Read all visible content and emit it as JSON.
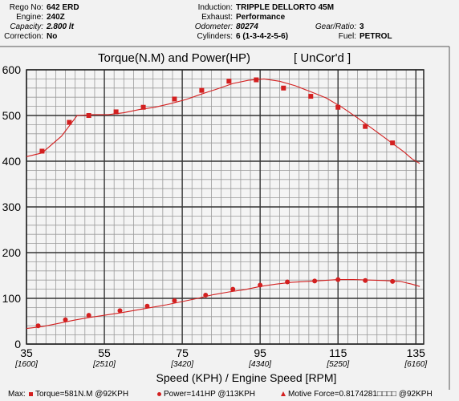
{
  "header": {
    "left": [
      {
        "label": "Rego No:",
        "value": "642 ERD",
        "italic": false
      },
      {
        "label": "Engine:",
        "value": "240Z",
        "italic": false
      },
      {
        "label": "Capacity:",
        "value": "2.800 lt",
        "italic": true
      },
      {
        "label": "Correction:",
        "value": "No",
        "italic": false
      }
    ],
    "mid": [
      {
        "label": "Induction:",
        "value": "TRIPPLE DELLORTO 45M",
        "italic": false
      },
      {
        "label": "Exhaust:",
        "value": "Performance",
        "italic": false
      },
      {
        "label": "Odometer:",
        "value": "80274",
        "italic": true
      },
      {
        "label": "Cylinders:",
        "value": "6 (1-3-4-2-5-6)",
        "italic": false
      }
    ],
    "right": [
      {
        "label": "Gear/Ratio:",
        "value": "3",
        "italic": true
      },
      {
        "label": "Fuel:",
        "value": "PETROL",
        "italic": false
      }
    ]
  },
  "footer": {
    "max_label": "Max:",
    "torque": "Torque=581N.M @92KPH",
    "power": "Power=141HP @113KPH",
    "motive": "Motive Force=0.8174281□□□□ @92KPH"
  },
  "chart_data": {
    "type": "line",
    "title": "Torque(N.M) and Power(HP)",
    "title_suffix": "[ UnCor'd ]",
    "xlabel": "Speed (KPH) / Engine Speed [RPM]",
    "xlim": [
      35,
      137
    ],
    "ylim": [
      0,
      600
    ],
    "x_ticks": [
      35,
      55,
      75,
      95,
      115,
      135
    ],
    "x_tick_labels": [
      "35",
      "55",
      "75",
      "95",
      "115",
      "135"
    ],
    "rpm_ticks": [
      35,
      55,
      75,
      95,
      115,
      135
    ],
    "rpm_tick_labels": [
      "[1600]",
      "[2510]",
      "[3420]",
      "[4340]",
      "[5250]",
      "[6160]"
    ],
    "y_ticks": [
      0,
      100,
      200,
      300,
      400,
      500,
      600
    ],
    "y_tick_labels": [
      "0",
      "100",
      "200",
      "300",
      "400",
      "500",
      "600"
    ],
    "grid": true,
    "colors": {
      "series": "#d32020",
      "grid": "#333333",
      "minor_grid": "#9a9a9a"
    },
    "series": [
      {
        "name": "Torque",
        "marker": "square",
        "x": [
          35,
          39,
          44,
          48,
          52,
          56,
          60,
          64,
          68,
          72,
          76,
          80,
          84,
          88,
          92,
          96,
          100,
          104,
          108,
          112,
          116,
          120,
          124,
          128,
          132,
          134,
          136
        ],
        "y": [
          410,
          418,
          455,
          500,
          502,
          502,
          506,
          513,
          518,
          526,
          535,
          547,
          558,
          570,
          577,
          580,
          575,
          565,
          552,
          538,
          518,
          495,
          470,
          445,
          420,
          405,
          395
        ]
      },
      {
        "name": "Power",
        "marker": "circle",
        "x": [
          35,
          39,
          43,
          47,
          51,
          55,
          59,
          63,
          67,
          71,
          75,
          79,
          83,
          87,
          91,
          95,
          99,
          103,
          107,
          111,
          115,
          119,
          123,
          127,
          131,
          134,
          136
        ],
        "y": [
          34,
          38,
          45,
          52,
          58,
          63,
          68,
          74,
          80,
          86,
          93,
          100,
          108,
          114,
          119,
          126,
          131,
          135,
          137,
          139,
          141,
          141,
          140,
          139,
          137,
          131,
          126
        ]
      }
    ],
    "markers": {
      "Torque": [
        [
          39,
          422
        ],
        [
          46,
          485
        ],
        [
          51,
          500
        ],
        [
          58,
          508
        ],
        [
          65,
          518
        ],
        [
          73,
          536
        ],
        [
          80,
          555
        ],
        [
          87,
          575
        ],
        [
          94,
          578
        ],
        [
          101,
          560
        ],
        [
          108,
          542
        ],
        [
          115,
          518
        ],
        [
          122,
          476
        ],
        [
          129,
          440
        ]
      ],
      "Power": [
        [
          38,
          40
        ],
        [
          45,
          53
        ],
        [
          51,
          63
        ],
        [
          59,
          73
        ],
        [
          66,
          83
        ],
        [
          73,
          95
        ],
        [
          81,
          107
        ],
        [
          88,
          120
        ],
        [
          95,
          129
        ],
        [
          102,
          136
        ],
        [
          109,
          138
        ],
        [
          115,
          141
        ],
        [
          122,
          139
        ],
        [
          129,
          137
        ]
      ]
    }
  }
}
